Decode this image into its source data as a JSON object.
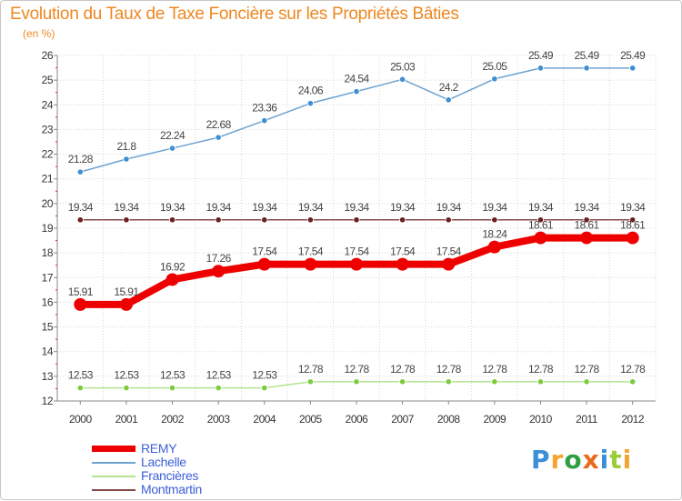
{
  "header": {
    "title": "Evolution du Taux de Taxe Foncière sur les Propriétés Bâties",
    "unit": "(en %)"
  },
  "logo": {
    "text": "Proxiti",
    "letters": [
      "P",
      "r",
      "o",
      "x",
      "i",
      "t",
      "i"
    ],
    "colors": [
      "#3a8fd6",
      "#f2a531",
      "#2f9e44",
      "#ea6a1c",
      "#3a8fd6",
      "#9ccc3a",
      "#f2a531"
    ]
  },
  "chart_data": {
    "type": "line",
    "title": "Evolution du Taux de Taxe Foncière sur les Propriétés Bâties",
    "ylabel": "(en %)",
    "x": [
      "2000",
      "2001",
      "2002",
      "2003",
      "2004",
      "2005",
      "2006",
      "2007",
      "2008",
      "2009",
      "2010",
      "2011",
      "2012"
    ],
    "ylim": [
      12,
      26
    ],
    "yticks": [
      12,
      13,
      14,
      15,
      16,
      17,
      18,
      19,
      20,
      21,
      22,
      23,
      24,
      25,
      26
    ],
    "grid": true,
    "legend_position": "bottom-left",
    "series": [
      {
        "name": "REMY",
        "color": "#ee0000",
        "values": [
          15.91,
          15.91,
          16.92,
          17.26,
          17.54,
          17.54,
          17.54,
          17.54,
          17.54,
          18.24,
          18.61,
          18.61,
          18.61
        ]
      },
      {
        "name": "Lachelle",
        "color": "#6ea3d0",
        "marker": "#3f8fd2",
        "values": [
          21.28,
          21.8,
          22.24,
          22.68,
          23.36,
          24.06,
          24.54,
          25.03,
          24.2,
          25.05,
          25.49,
          25.49,
          25.49
        ]
      },
      {
        "name": "Francières",
        "color": "#b5e38f",
        "marker": "#7ccc3b",
        "values": [
          12.53,
          12.53,
          12.53,
          12.53,
          12.53,
          12.78,
          12.78,
          12.78,
          12.78,
          12.78,
          12.78,
          12.78,
          12.78
        ]
      },
      {
        "name": "Montmartin",
        "color": "#8a4a4a",
        "marker": "#6b1f1f",
        "values": [
          19.34,
          19.34,
          19.34,
          19.34,
          19.34,
          19.34,
          19.34,
          19.34,
          19.34,
          19.34,
          19.34,
          19.34,
          19.34
        ]
      }
    ]
  }
}
